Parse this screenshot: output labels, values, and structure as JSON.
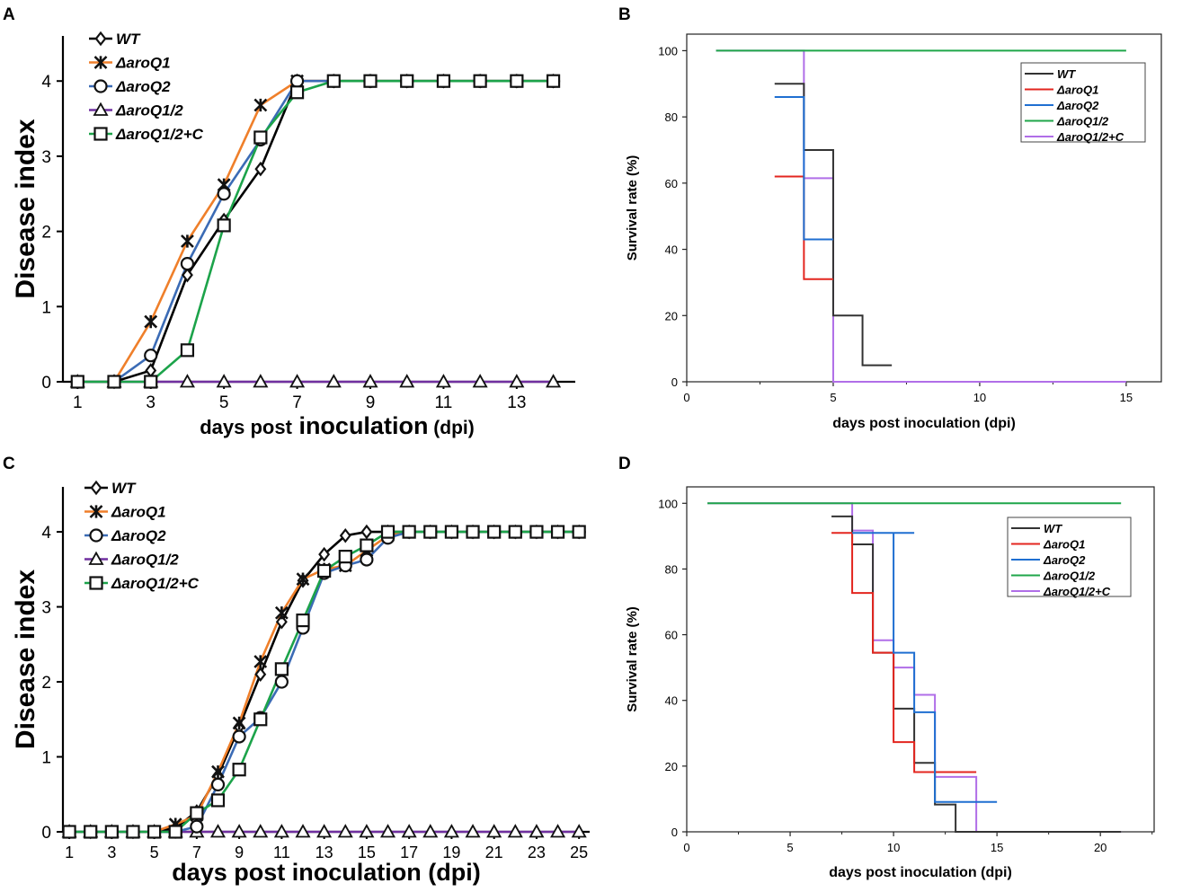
{
  "chart_data": [
    {
      "panel": "A",
      "type": "line",
      "xlabel_prefix": "days post",
      "xlabel_main": "inoculation",
      "xlabel_suffix": "(dpi)",
      "ylabel": "Disease index",
      "xlim": [
        0.6,
        14.6
      ],
      "ylim": [
        0,
        4.6
      ],
      "xticks": [
        1,
        3,
        5,
        7,
        9,
        11,
        13
      ],
      "yticks": [
        0,
        1,
        2,
        3,
        4
      ],
      "x": [
        1,
        2,
        3,
        4,
        5,
        6,
        7,
        8,
        9,
        10,
        11,
        12,
        13,
        14
      ],
      "series": [
        {
          "name": "WT",
          "color": "#000000",
          "marker": "diamond",
          "values": [
            0,
            0,
            0.15,
            1.42,
            2.15,
            2.83,
            4,
            4,
            4,
            4,
            4,
            4,
            4,
            4
          ]
        },
        {
          "name": "ΔaroQ1",
          "color": "#ef7f2a",
          "marker": "asterisk",
          "values": [
            0,
            0,
            0.8,
            1.87,
            2.62,
            3.68,
            4,
            4,
            4,
            4,
            4,
            4,
            4,
            4
          ]
        },
        {
          "name": "ΔaroQ2",
          "color": "#3b6bb5",
          "marker": "circle",
          "values": [
            0,
            0,
            0.35,
            1.57,
            2.5,
            3.22,
            4,
            4,
            4,
            4,
            4,
            4,
            4,
            4
          ]
        },
        {
          "name": "ΔaroQ1/2",
          "color": "#7030a0",
          "marker": "triangle",
          "values": [
            0,
            0,
            0,
            0,
            0,
            0,
            0,
            0,
            0,
            0,
            0,
            0,
            0,
            0
          ]
        },
        {
          "name": "ΔaroQ1/2+C",
          "color": "#1ca34a",
          "marker": "square",
          "values": [
            0,
            0,
            0,
            0.42,
            2.08,
            3.25,
            3.85,
            4,
            4,
            4,
            4,
            4,
            4,
            4
          ]
        }
      ]
    },
    {
      "panel": "B",
      "type": "line",
      "xlabel": "days post inoculation (dpi)",
      "ylabel": "Survival rate (%)",
      "xlim": [
        0,
        16.2
      ],
      "ylim": [
        0,
        105
      ],
      "xticks": [
        0,
        5,
        10,
        15
      ],
      "yticks": [
        0,
        20,
        40,
        60,
        80,
        100
      ],
      "series": [
        {
          "name": "WT",
          "color": "#333333",
          "steps": [
            [
              3,
              4,
              90
            ],
            [
              4,
              5,
              70
            ],
            [
              5,
              6,
              20
            ],
            [
              6,
              7,
              5
            ]
          ]
        },
        {
          "name": "ΔaroQ1",
          "color": "#e3261f",
          "steps": [
            [
              3,
              4,
              62
            ],
            [
              4,
              5,
              31
            ]
          ]
        },
        {
          "name": "ΔaroQ2",
          "color": "#1f6fd1",
          "steps": [
            [
              3,
              4,
              86
            ],
            [
              4,
              5,
              43
            ]
          ]
        },
        {
          "name": "ΔaroQ1/2",
          "color": "#1fa64a",
          "steps": [
            [
              1,
              15,
              100
            ]
          ]
        },
        {
          "name": "ΔaroQ1/2+C",
          "color": "#b06ee8",
          "steps": [
            [
              1,
              4,
              100
            ],
            [
              4,
              5,
              61.5
            ],
            [
              5,
              15,
              0
            ]
          ]
        }
      ]
    },
    {
      "panel": "C",
      "type": "line",
      "xlabel": "days post inoculation (dpi)",
      "ylabel": "Disease index",
      "xlim": [
        0.7,
        25.5
      ],
      "ylim": [
        0,
        4.6
      ],
      "xticks": [
        1,
        3,
        5,
        7,
        9,
        11,
        13,
        15,
        17,
        19,
        21,
        23,
        25
      ],
      "yticks": [
        0,
        1,
        2,
        3,
        4
      ],
      "x": [
        1,
        2,
        3,
        4,
        5,
        6,
        7,
        8,
        9,
        10,
        11,
        12,
        13,
        14,
        15,
        16,
        17,
        18,
        19,
        20,
        21,
        22,
        23,
        24,
        25
      ],
      "series": [
        {
          "name": "WT",
          "color": "#000000",
          "marker": "diamond",
          "values": [
            0,
            0,
            0,
            0,
            0,
            0.05,
            0.27,
            0.75,
            1.4,
            2.1,
            2.8,
            3.35,
            3.7,
            3.95,
            4,
            4,
            4,
            4,
            4,
            4,
            4,
            4,
            4,
            4,
            4
          ]
        },
        {
          "name": "ΔaroQ1",
          "color": "#ef7f2a",
          "marker": "asterisk",
          "values": [
            0,
            0,
            0,
            0,
            0,
            0.1,
            0.22,
            0.8,
            1.45,
            2.27,
            2.92,
            3.37,
            3.5,
            3.55,
            3.75,
            3.95,
            4,
            4,
            4,
            4,
            4,
            4,
            4,
            4,
            4
          ]
        },
        {
          "name": "ΔaroQ2",
          "color": "#3b6bb5",
          "marker": "circle",
          "values": [
            0,
            0,
            0,
            0,
            0,
            0,
            0.07,
            0.63,
            1.27,
            1.52,
            2,
            2.72,
            3.45,
            3.55,
            3.63,
            3.92,
            4,
            4,
            4,
            4,
            4,
            4,
            4,
            4,
            4
          ]
        },
        {
          "name": "ΔaroQ1/2",
          "color": "#7030a0",
          "marker": "triangle",
          "values": [
            0,
            0,
            0,
            0,
            0,
            0,
            0,
            0,
            0,
            0,
            0,
            0,
            0,
            0,
            0,
            0,
            0,
            0,
            0,
            0,
            0,
            0,
            0,
            0,
            0
          ]
        },
        {
          "name": "ΔaroQ1/2+C",
          "color": "#1ca34a",
          "marker": "square",
          "values": [
            0,
            0,
            0,
            0,
            0,
            0,
            0.25,
            0.42,
            0.83,
            1.5,
            2.17,
            2.82,
            3.48,
            3.67,
            3.82,
            4,
            4,
            4,
            4,
            4,
            4,
            4,
            4,
            4,
            4
          ]
        }
      ]
    },
    {
      "panel": "D",
      "type": "line",
      "xlabel": "days post inoculation (dpi)",
      "ylabel": "Survival rate (%)",
      "xlim": [
        0,
        22.6
      ],
      "ylim": [
        0,
        105
      ],
      "xticks": [
        0,
        5,
        10,
        15,
        20
      ],
      "yticks": [
        0,
        20,
        40,
        60,
        80,
        100
      ],
      "series": [
        {
          "name": "WT",
          "color": "#333333",
          "steps": [
            [
              7,
              8,
              96
            ],
            [
              8,
              9,
              87.5
            ],
            [
              9,
              10,
              54.5
            ],
            [
              10,
              11,
              37.5
            ],
            [
              11,
              12,
              21
            ],
            [
              12,
              13,
              8.3
            ],
            [
              13,
              21,
              0
            ]
          ]
        },
        {
          "name": "ΔaroQ1",
          "color": "#e3261f",
          "steps": [
            [
              7,
              8,
              91
            ],
            [
              8,
              9,
              72.7
            ],
            [
              9,
              10,
              54.5
            ],
            [
              10,
              11,
              27.3
            ],
            [
              11,
              14,
              18.2
            ]
          ]
        },
        {
          "name": "ΔaroQ2",
          "color": "#1f6fd1",
          "steps": [
            [
              8,
              9,
              91
            ],
            [
              9,
              11,
              91
            ],
            [
              10,
              11,
              54.5
            ],
            [
              11,
              12,
              36.4
            ],
            [
              12,
              15,
              9.1
            ]
          ]
        },
        {
          "name": "ΔaroQ1/2",
          "color": "#1fa64a",
          "steps": [
            [
              1,
              21,
              100
            ]
          ]
        },
        {
          "name": "ΔaroQ1/2+C",
          "color": "#b06ee8",
          "steps": [
            [
              1,
              8,
              100
            ],
            [
              8,
              9,
              91.7
            ],
            [
              9,
              10,
              58.3
            ],
            [
              10,
              11,
              50
            ],
            [
              11,
              12,
              41.7
            ],
            [
              12,
              14,
              16.7
            ],
            [
              14,
              21,
              0
            ]
          ]
        }
      ]
    }
  ]
}
